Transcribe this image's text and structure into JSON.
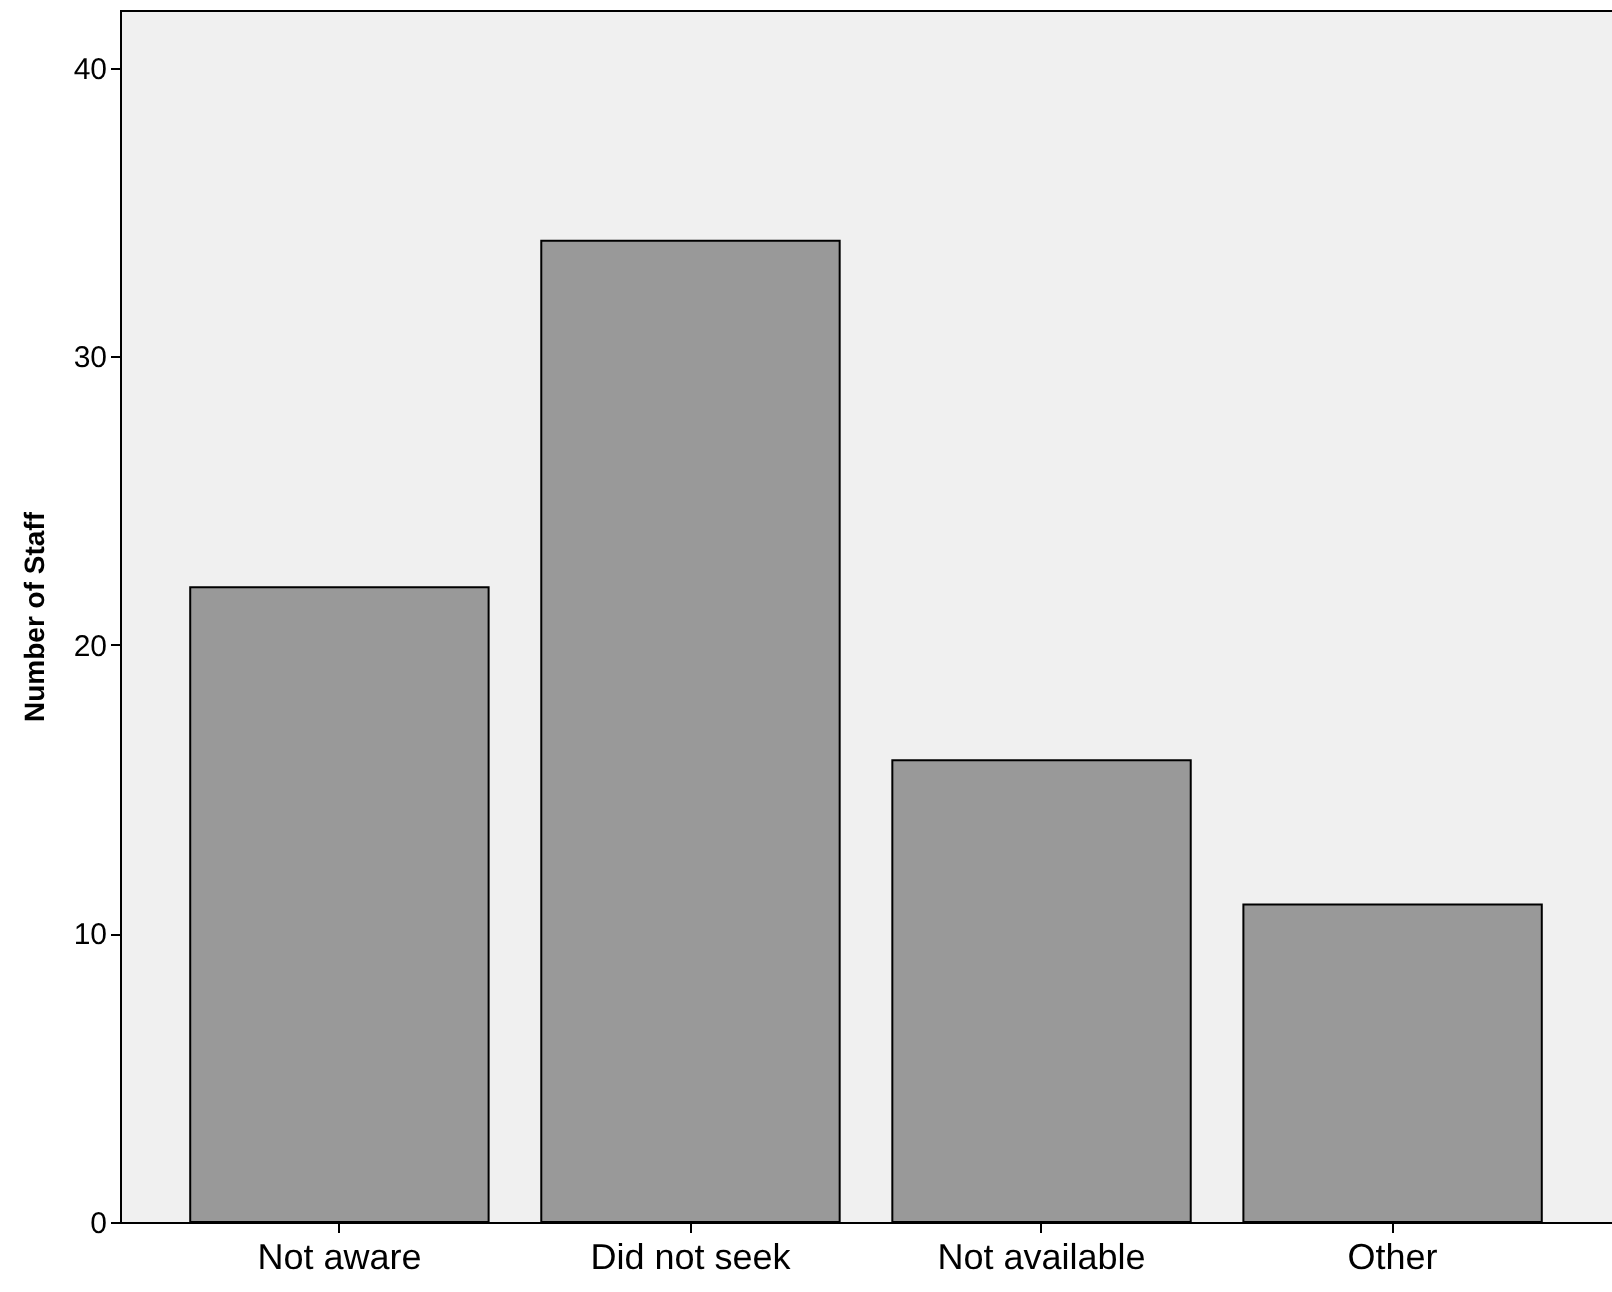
{
  "chart_data": {
    "type": "bar",
    "ylabel": "Number of Staff",
    "categories": [
      "Not aware",
      "Did not seek",
      "Not available",
      "Other"
    ],
    "values": [
      22,
      34,
      16,
      11
    ],
    "color": "#999999",
    "ylim": [
      0,
      42
    ],
    "yticks": [
      0,
      10,
      20,
      30,
      40
    ],
    "grid": false
  }
}
